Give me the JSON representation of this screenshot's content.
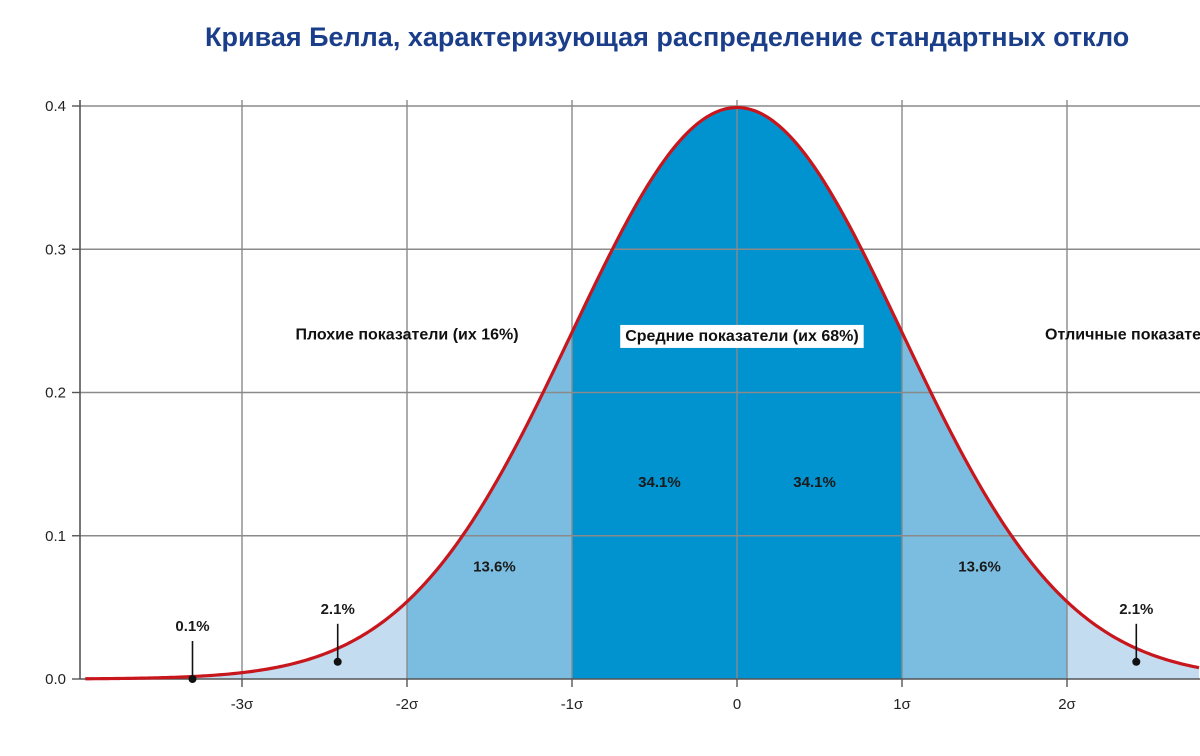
{
  "chart_data": {
    "type": "area",
    "title": "Кривая Белла, характеризующая распределение стандартных откло",
    "x_ticks": [
      {
        "x": -3,
        "label": "-3σ"
      },
      {
        "x": -2,
        "label": "-2σ"
      },
      {
        "x": -1,
        "label": "-1σ"
      },
      {
        "x": 0,
        "label": "0"
      },
      {
        "x": 1,
        "label": "1σ"
      },
      {
        "x": 2,
        "label": "2σ"
      }
    ],
    "y_ticks": [
      {
        "y": 0.0,
        "label": "0.0"
      },
      {
        "y": 0.1,
        "label": "0.1"
      },
      {
        "y": 0.2,
        "label": "0.2"
      },
      {
        "y": 0.3,
        "label": "0.3"
      },
      {
        "y": 0.4,
        "label": "0.4"
      }
    ],
    "xlim": [
      -3.95,
      2.8
    ],
    "ylim": [
      0,
      0.4
    ],
    "grid": true,
    "curve": {
      "function": "normal_pdf",
      "mean": 0,
      "sd": 1,
      "color": "#c8161d"
    },
    "segments": [
      {
        "from": -3.95,
        "to": -2,
        "percent_label": "0.1%",
        "color": "#c4dcef"
      },
      {
        "from": -2,
        "to": -1,
        "percent_label": "13.6%",
        "color": "#7bbde0"
      },
      {
        "from": -1,
        "to": 0,
        "percent_label": "34.1%",
        "color": "#0093cf"
      },
      {
        "from": 0,
        "to": 1,
        "percent_label": "34.1%",
        "color": "#0093cf"
      },
      {
        "from": 1,
        "to": 2,
        "percent_label": "13.6%",
        "color": "#7bbde0"
      },
      {
        "from": 2,
        "to": 2.8,
        "percent_label": "",
        "color": "#c4dcef"
      }
    ],
    "annotations": [
      {
        "text": "0.1%",
        "x": -3.3,
        "y": 0.0
      },
      {
        "text": "2.1%",
        "x": -2.42,
        "y": 0.012
      },
      {
        "text": "2.1%",
        "x": 2.42,
        "y": 0.012
      }
    ],
    "region_labels": [
      {
        "text": "Плохие показатели (их 16%)",
        "x": -2.0,
        "y": 0.237,
        "boxed": false
      },
      {
        "text": "Средние показатели (их 68%)",
        "x": 0.03,
        "y": 0.236,
        "boxed": true
      },
      {
        "text": "Отличные показатели",
        "x": 2.4,
        "y": 0.237,
        "boxed": false
      }
    ],
    "area_percent_labels": [
      {
        "text": "34.1%",
        "x": -0.47,
        "y": 0.134
      },
      {
        "text": "34.1%",
        "x": 0.47,
        "y": 0.134
      },
      {
        "text": "13.6%",
        "x": -1.47,
        "y": 0.075
      },
      {
        "text": "13.6%",
        "x": 1.47,
        "y": 0.075
      }
    ]
  }
}
